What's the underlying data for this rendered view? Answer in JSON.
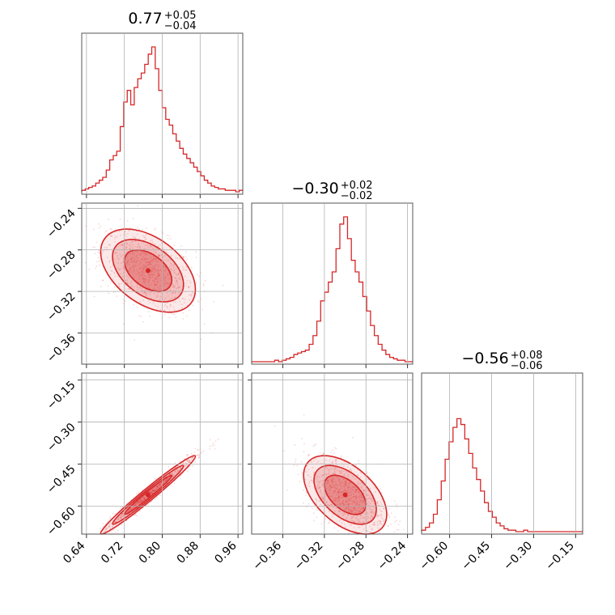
{
  "chart_data": {
    "type": "corner",
    "color": "#d62728",
    "grid": true,
    "parameters": [
      {
        "index": 0,
        "median": "0.77",
        "err_plus": "+0.05",
        "err_minus": "−0.04",
        "range": [
          0.63,
          0.97
        ],
        "ticks": [
          0.64,
          0.72,
          0.8,
          0.88,
          0.96
        ],
        "tick_labels": [
          "0.64",
          "0.72",
          "0.80",
          "0.88",
          "0.96"
        ],
        "histogram": [
          0.01,
          0.02,
          0.03,
          0.04,
          0.06,
          0.08,
          0.1,
          0.15,
          0.22,
          0.25,
          0.28,
          0.45,
          0.62,
          0.7,
          0.6,
          0.72,
          0.78,
          0.82,
          0.88,
          0.95,
          1.0,
          0.85,
          0.7,
          0.58,
          0.5,
          0.46,
          0.4,
          0.35,
          0.3,
          0.26,
          0.23,
          0.2,
          0.17,
          0.14,
          0.11,
          0.08,
          0.06,
          0.04,
          0.03,
          0.02,
          0.02,
          0.01,
          0.01,
          0.01,
          0.0,
          0.01
        ]
      },
      {
        "index": 1,
        "median": "−0.30",
        "err_plus": "+0.02",
        "err_minus": "−0.02",
        "range": [
          -0.39,
          -0.235
        ],
        "ticks": [
          -0.36,
          -0.32,
          -0.28,
          -0.24
        ],
        "tick_labels": [
          "−0.36",
          "−0.32",
          "−0.28",
          "−0.24"
        ],
        "histogram": [
          0.0,
          0.0,
          0.0,
          0.0,
          0.0,
          0.0,
          0.01,
          0.0,
          0.01,
          0.02,
          0.03,
          0.05,
          0.06,
          0.07,
          0.08,
          0.12,
          0.18,
          0.28,
          0.42,
          0.48,
          0.55,
          0.62,
          0.78,
          0.95,
          1.0,
          0.85,
          0.7,
          0.62,
          0.55,
          0.45,
          0.35,
          0.25,
          0.18,
          0.12,
          0.08,
          0.05,
          0.03,
          0.02,
          0.01,
          0.01,
          0.0,
          0.0
        ]
      },
      {
        "index": 2,
        "median": "−0.56",
        "err_plus": "+0.08",
        "err_minus": "−0.06",
        "range": [
          -0.7,
          -0.125
        ],
        "ticks": [
          -0.6,
          -0.45,
          -0.3,
          -0.15
        ],
        "tick_labels": [
          "−0.60",
          "−0.45",
          "−0.30",
          "−0.15"
        ],
        "histogram": [
          0.01,
          0.03,
          0.06,
          0.12,
          0.22,
          0.35,
          0.5,
          0.62,
          0.72,
          0.78,
          0.74,
          0.64,
          0.54,
          0.44,
          0.36,
          0.28,
          0.2,
          0.14,
          0.1,
          0.06,
          0.04,
          0.02,
          0.01,
          0.01,
          0.0,
          0.0,
          0.01,
          0.0,
          0.0,
          0.0,
          0.0,
          0.0,
          0.0,
          0.0,
          0.0,
          0.0,
          0.0,
          0.0,
          0.0,
          0.0,
          0.0
        ]
      }
    ],
    "joint": [
      {
        "x_param": 0,
        "y_param": 1,
        "peak": [
          0.77,
          -0.3
        ],
        "spread": [
          0.05,
          0.02
        ],
        "correlation": -0.45
      },
      {
        "x_param": 0,
        "y_param": 2,
        "peak": [
          0.77,
          -0.56
        ],
        "spread": [
          0.05,
          0.07
        ],
        "correlation": 0.98
      },
      {
        "x_param": 1,
        "y_param": 2,
        "peak": [
          -0.3,
          -0.56
        ],
        "spread": [
          0.02,
          0.07
        ],
        "correlation": -0.5
      }
    ]
  }
}
